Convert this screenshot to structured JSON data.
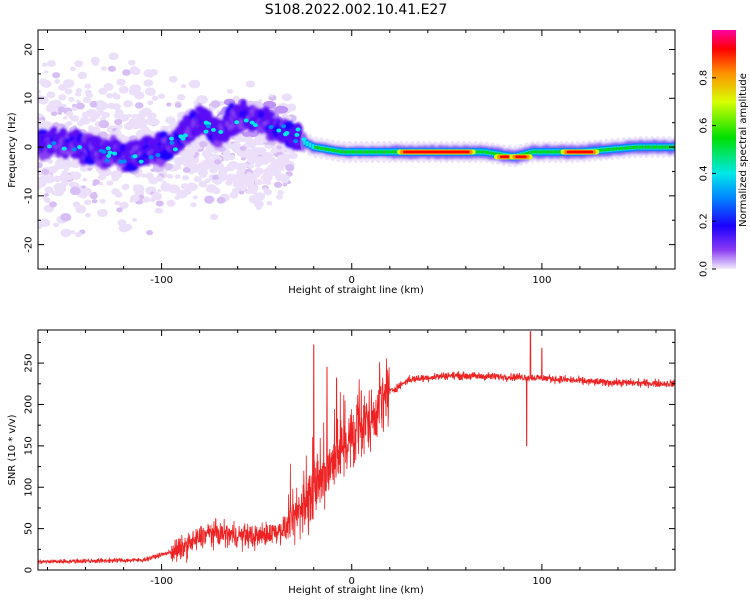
{
  "title": "S108.2022.002.10.41.E27",
  "colors": {
    "snr_line": "#ee2222",
    "frame": "#000000"
  },
  "chart_data": [
    {
      "type": "heatmap",
      "name": "spectrogram",
      "xlabel": "Height of straight line (km)",
      "ylabel": "Frequency (Hz)",
      "xlim": [
        -165,
        170
      ],
      "ylim": [
        -25,
        24
      ],
      "xticks": [
        -100,
        0,
        100
      ],
      "yticks": [
        -20,
        -10,
        0,
        10,
        20
      ],
      "xtick_labels": [
        "-100",
        "0",
        "100"
      ],
      "ytick_labels": [
        "-20",
        "-10",
        "0",
        "10",
        "20"
      ],
      "colorbar": {
        "label": "Normalized spectral amplitude",
        "range": [
          0,
          1
        ],
        "ticks": [
          0.0,
          0.2,
          0.4,
          0.6,
          0.8
        ],
        "tick_labels": [
          "0.0",
          "0.2",
          "0.4",
          "0.6",
          "0.8"
        ]
      },
      "ridge": [
        {
          "x": -165,
          "f": 1
        },
        {
          "x": -140,
          "f": 0
        },
        {
          "x": -120,
          "f": -2
        },
        {
          "x": -100,
          "f": -1
        },
        {
          "x": -90,
          "f": 2
        },
        {
          "x": -80,
          "f": 5
        },
        {
          "x": -70,
          "f": 3
        },
        {
          "x": -60,
          "f": 6
        },
        {
          "x": -45,
          "f": 5
        },
        {
          "x": -30,
          "f": 2
        },
        {
          "x": -20,
          "f": 0
        },
        {
          "x": -5,
          "f": -1
        },
        {
          "x": 10,
          "f": -1
        },
        {
          "x": 40,
          "f": -1
        },
        {
          "x": 70,
          "f": -1
        },
        {
          "x": 85,
          "f": -2
        },
        {
          "x": 95,
          "f": -1
        },
        {
          "x": 120,
          "f": -1
        },
        {
          "x": 150,
          "f": 0
        },
        {
          "x": 170,
          "f": 0
        }
      ],
      "hot_segments": [
        {
          "x0": 27,
          "x1": 62,
          "f": -1
        },
        {
          "x0": 78,
          "x1": 84,
          "f": -2
        },
        {
          "x0": 86,
          "x1": 92,
          "f": -2
        },
        {
          "x0": 113,
          "x1": 127,
          "f": -1
        }
      ]
    },
    {
      "type": "line",
      "name": "snr",
      "xlabel": "Height of straight line (km)",
      "ylabel": "SNR (10 * v/v)",
      "xlim": [
        -165,
        170
      ],
      "ylim": [
        0,
        290
      ],
      "xticks": [
        -100,
        0,
        100
      ],
      "yticks": [
        0,
        50,
        100,
        150,
        200,
        250
      ],
      "xtick_labels": [
        "-100",
        "0",
        "100"
      ],
      "ytick_labels": [
        "0",
        "50",
        "100",
        "150",
        "200",
        "250"
      ],
      "trend": [
        {
          "x": -165,
          "y": 10
        },
        {
          "x": -110,
          "y": 12
        },
        {
          "x": -90,
          "y": 25
        },
        {
          "x": -75,
          "y": 45
        },
        {
          "x": -50,
          "y": 40
        },
        {
          "x": -35,
          "y": 50
        },
        {
          "x": -25,
          "y": 80
        },
        {
          "x": -15,
          "y": 110
        },
        {
          "x": -5,
          "y": 150
        },
        {
          "x": 5,
          "y": 170
        },
        {
          "x": 12,
          "y": 190
        },
        {
          "x": 20,
          "y": 215
        },
        {
          "x": 30,
          "y": 230
        },
        {
          "x": 50,
          "y": 235
        },
        {
          "x": 90,
          "y": 233
        },
        {
          "x": 100,
          "y": 232
        },
        {
          "x": 130,
          "y": 227
        },
        {
          "x": 170,
          "y": 225
        }
      ],
      "spikes": [
        {
          "x": -20,
          "y": 272
        },
        {
          "x": -13,
          "y": 245
        },
        {
          "x": -8,
          "y": 232
        },
        {
          "x": 92,
          "y": 150
        },
        {
          "x": 94,
          "y": 288
        },
        {
          "x": 100,
          "y": 268
        }
      ]
    }
  ]
}
